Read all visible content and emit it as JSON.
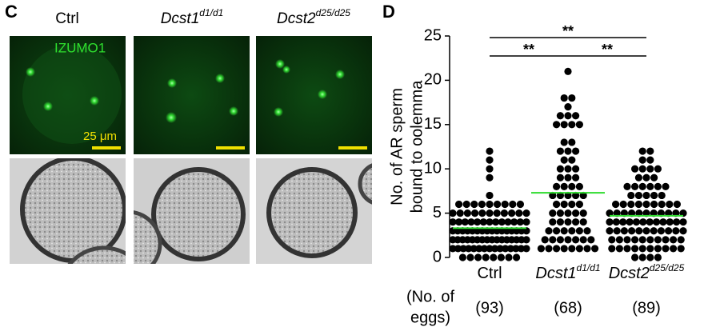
{
  "panel_c": {
    "label": "C",
    "columns": [
      {
        "name": "Ctrl"
      },
      {
        "name": "Dcst1",
        "sup": "d1/d1"
      },
      {
        "name": "Dcst2",
        "sup": "d25/d25"
      }
    ],
    "stain": "IZUMO1",
    "scale": "25 μm"
  },
  "chart_data": {
    "type": "dotplot",
    "panel_label": "D",
    "y_label": [
      "No. of AR sperm",
      "bound to oolemma"
    ],
    "categories": [
      "Ctrl",
      "Dcst1",
      "Dcst2"
    ],
    "category_sup": [
      null,
      "d1/d1",
      "d25/d25"
    ],
    "count_title": [
      "(No. of",
      "eggs)"
    ],
    "count_labels": [
      "(93)",
      "(68)",
      "(89)"
    ],
    "ylim": [
      0,
      25
    ],
    "yticks": [
      0,
      5,
      10,
      15,
      20,
      25
    ],
    "dot_color": "#000000",
    "mean_color": "#2edc2e",
    "groups": [
      {
        "mean": 3.3,
        "values": [
          0,
          0,
          0,
          0,
          0,
          0,
          0,
          0,
          1,
          1,
          1,
          1,
          1,
          1,
          1,
          1,
          1,
          1,
          1,
          1,
          1,
          1,
          1,
          2,
          2,
          2,
          2,
          2,
          2,
          2,
          2,
          2,
          2,
          2,
          2,
          2,
          2,
          2,
          2,
          3,
          3,
          3,
          3,
          3,
          3,
          3,
          3,
          3,
          3,
          3,
          3,
          3,
          3,
          3,
          3,
          4,
          4,
          4,
          4,
          4,
          4,
          4,
          4,
          4,
          4,
          4,
          4,
          4,
          5,
          5,
          5,
          5,
          5,
          5,
          5,
          5,
          5,
          5,
          5,
          6,
          6,
          6,
          6,
          6,
          6,
          6,
          6,
          6,
          7,
          9,
          10,
          11,
          12
        ]
      },
      {
        "mean": 7.3,
        "values": [
          1,
          1,
          1,
          1,
          1,
          1,
          1,
          1,
          2,
          2,
          2,
          2,
          2,
          2,
          2,
          3,
          3,
          3,
          3,
          3,
          3,
          4,
          4,
          4,
          4,
          4,
          5,
          5,
          5,
          5,
          5,
          6,
          6,
          6,
          6,
          7,
          7,
          7,
          7,
          7,
          8,
          8,
          8,
          8,
          9,
          9,
          9,
          10,
          10,
          10,
          11,
          11,
          12,
          12,
          12,
          13,
          13,
          15,
          15,
          15,
          15,
          16,
          16,
          16,
          17,
          18,
          18,
          21
        ]
      },
      {
        "mean": 4.7,
        "values": [
          0,
          0,
          0,
          0,
          1,
          1,
          1,
          1,
          1,
          1,
          1,
          1,
          1,
          1,
          2,
          2,
          2,
          2,
          2,
          2,
          2,
          2,
          2,
          2,
          3,
          3,
          3,
          3,
          3,
          3,
          3,
          3,
          3,
          3,
          3,
          4,
          4,
          4,
          4,
          4,
          4,
          4,
          4,
          4,
          4,
          4,
          4,
          5,
          5,
          5,
          5,
          5,
          5,
          5,
          5,
          5,
          5,
          5,
          6,
          6,
          6,
          6,
          6,
          6,
          6,
          6,
          6,
          7,
          7,
          7,
          7,
          7,
          8,
          8,
          8,
          8,
          8,
          8,
          9,
          9,
          9,
          10,
          10,
          10,
          10,
          11,
          11,
          12,
          12
        ]
      }
    ],
    "significance": [
      {
        "label": "**",
        "from": 0,
        "to": 2
      },
      {
        "label": "**",
        "from": 0,
        "to": 1
      },
      {
        "label": "**",
        "from": 1,
        "to": 2
      }
    ]
  }
}
